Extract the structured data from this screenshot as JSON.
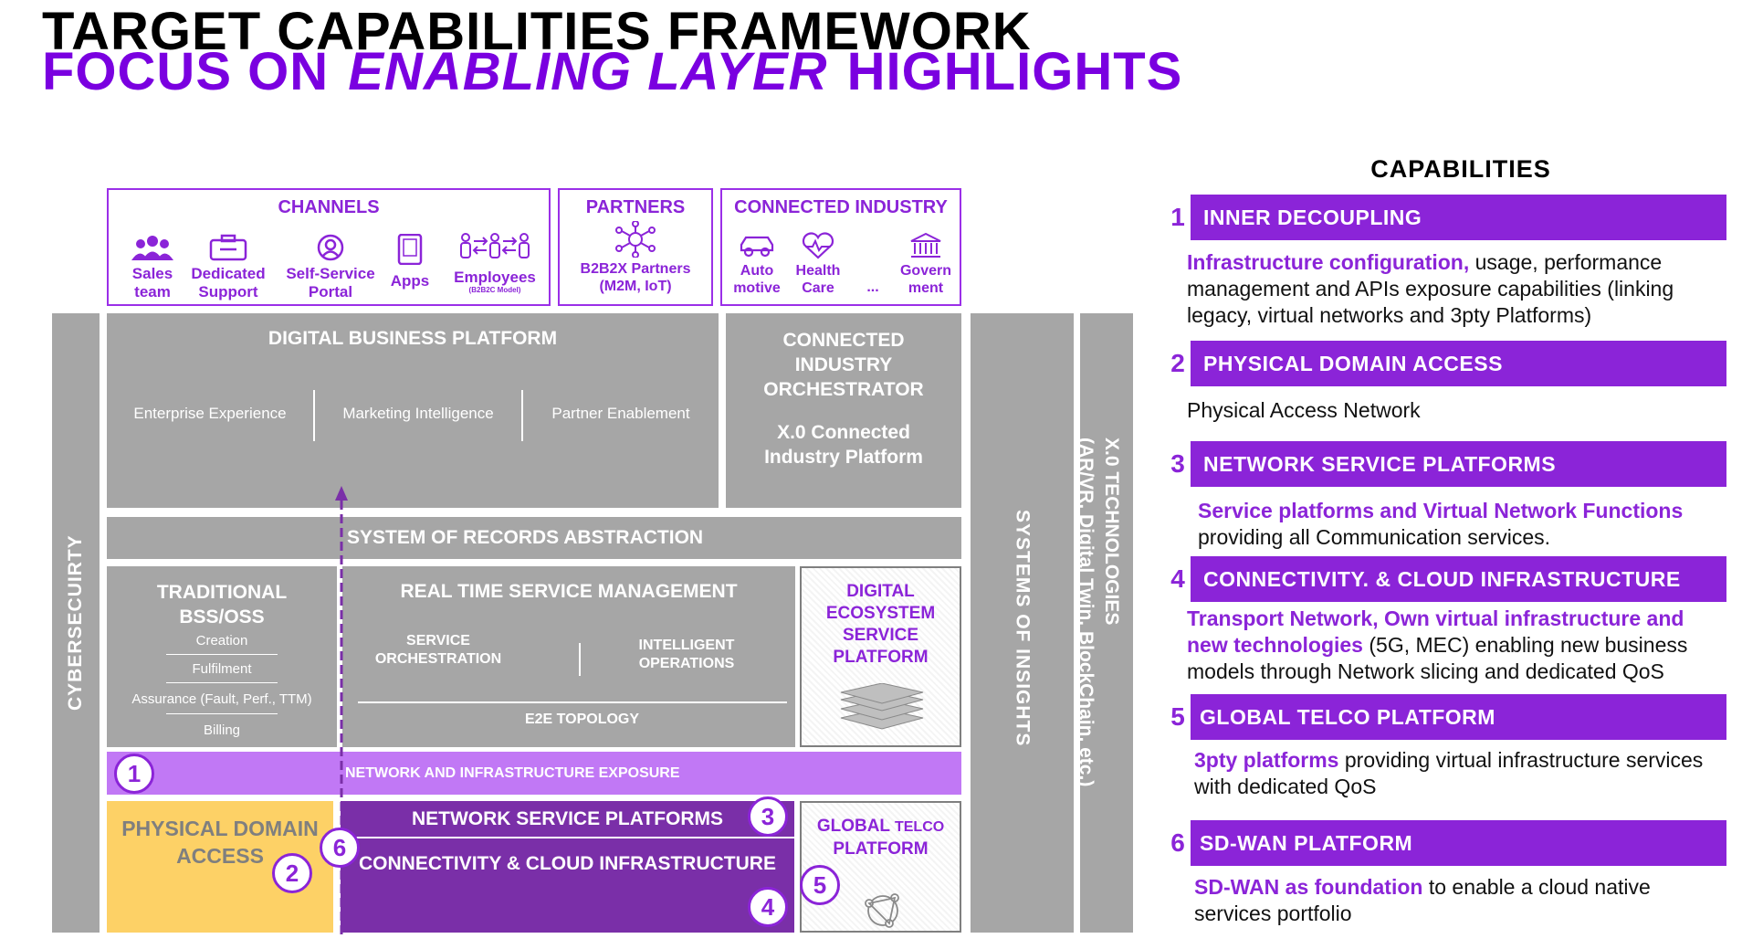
{
  "title": {
    "line1": "TARGET CAPABILITIES FRAMEWORK",
    "line2_a": "FOCUS ON",
    "line2_b": "ENABLING LAYER",
    "line2_c": "HIGHLIGHTS"
  },
  "channels": {
    "heading": "CHANNELS",
    "items": [
      "Sales team",
      "Dedicated Support",
      "Self-Service Portal",
      "Apps",
      "Employees"
    ],
    "employees_note": "(B2B2C Model)"
  },
  "partners": {
    "heading": "PARTNERS",
    "item": "B2B2X Partners (M2M, IoT)"
  },
  "connected_industry": {
    "heading": "CONNECTED INDUSTRY",
    "items": [
      "Auto motive",
      "Health Care",
      "...",
      "Govern ment"
    ]
  },
  "diagram": {
    "cybersecurity": "CYBERSECUIRTY",
    "dbp_title": "DIGITAL BUSINESS PLATFORM",
    "dbp_items": [
      "Enterprise Experience",
      "Marketing Intelligence",
      "Partner Enablement"
    ],
    "cio_title": "CONNECTED INDUSTRY ORCHESTRATOR",
    "cio_sub": "X.0 Connected Industry Platform",
    "sor": "SYSTEM OF RECORDS ABSTRACTION",
    "bss_title": "TRADITIONAL BSS/OSS",
    "bss_items": [
      "Creation",
      "Fulfilment",
      "Assurance (Fault, Perf., TTM)",
      "Billing"
    ],
    "rtsm_title": "REAL TIME SERVICE MANAGEMENT",
    "rtsm_left": "SERVICE ORCHESTRATION",
    "rtsm_right": "INTELLIGENT OPERATIONS",
    "rtsm_bottom": "E2E TOPOLOGY",
    "desp": "DIGITAL ECOSYSTEM SERVICE PLATFORM",
    "nie": "NETWORK AND INFRASTRUCTURE EXPOSURE",
    "pda": "PHYSICAL DOMAIN ACCESS",
    "nsp": "NETWORK SERVICE PLATFORMS",
    "cci": "CONNECTIVITY & CLOUD INFRASTRUCTURE",
    "gtp_a": "GLOBAL",
    "gtp_b": "TELCO",
    "gtp_c": "PLATFORM",
    "soi": "SYSTEMS OF INSIGHTS",
    "x0": "X.0 TECHNOLOGIES",
    "x0_sub": "(AR/VR, Digital Twin, BlockChain, etc.)",
    "badges": [
      "1",
      "2",
      "3",
      "4",
      "5",
      "6"
    ]
  },
  "capabilities": {
    "heading": "CAPABILITIES",
    "items": [
      {
        "num": "1",
        "title": "INNER DECOUPLING",
        "hl": "Infrastructure configuration,",
        "rest": " usage, performance management and APIs exposure capabilities (linking legacy, virtual networks and 3pty Platforms)"
      },
      {
        "num": "2",
        "title": "PHYSICAL DOMAIN ACCESS",
        "hl": "",
        "rest": "Physical Access Network"
      },
      {
        "num": "3",
        "title": "NETWORK SERVICE PLATFORMS",
        "hl": "Service platforms and Virtual Network Functions",
        "rest": " providing all Communication services."
      },
      {
        "num": "4",
        "title": "CONNECTIVITY. & CLOUD INFRASTRUCTURE",
        "hl": "Transport Network, Own virtual infrastructure and new technologies",
        "rest": " (5G, MEC) enabling new business models through Network slicing and dedicated QoS"
      },
      {
        "num": "5",
        "title": "GLOBAL TELCO PLATFORM",
        "hl": "3pty platforms",
        "rest": " providing virtual infrastructure services with dedicated QoS"
      },
      {
        "num": "6",
        "title": "SD-WAN PLATFORM",
        "hl": "SD-WAN as foundation",
        "rest": " to enable a cloud native services portfolio"
      }
    ]
  },
  "colors": {
    "purple": "#8b24d8",
    "light_purple": "#c178f5",
    "dark_purple": "#7a2fa8",
    "gray": "#a6a6a6",
    "yellow": "#fdd166"
  }
}
